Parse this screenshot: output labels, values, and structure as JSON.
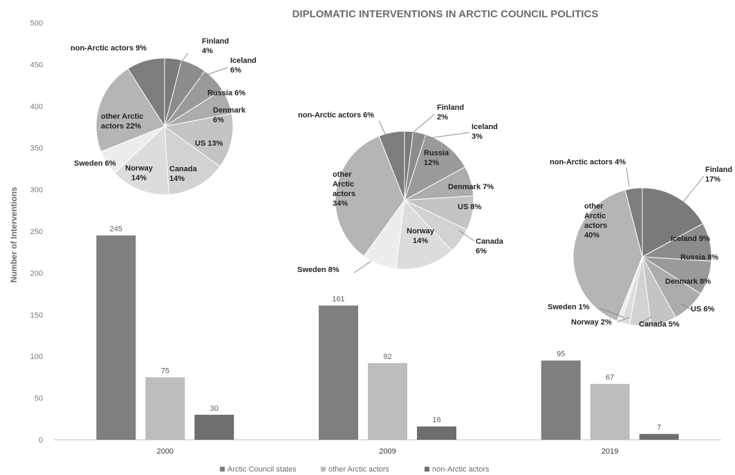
{
  "colors": {
    "arctic_council_states": "#7f7f7f",
    "other_arctic_actors": "#bdbdbd",
    "non_arctic_actors": "#6e6e6e",
    "axis": "#bfbfbf",
    "leader": "#8a8a8a"
  },
  "chart_data": [
    {
      "type": "bar",
      "title": "DIPLOMATIC INTERVENTIONS IN ARCTIC COUNCIL POLITICS",
      "ylabel": "Number of Interventions",
      "xlabel": "",
      "ylim": [
        0,
        500
      ],
      "yticks": [
        0,
        50,
        100,
        150,
        200,
        250,
        300,
        350,
        400,
        450,
        500
      ],
      "categories": [
        "2000",
        "2009",
        "2019"
      ],
      "series": [
        {
          "name": "Arctic Council states",
          "values": [
            245,
            161,
            95
          ],
          "color": "#7f7f7f"
        },
        {
          "name": "other Arctic actors",
          "values": [
            75,
            92,
            67
          ],
          "color": "#bdbdbd"
        },
        {
          "name": "non-Arctic actors",
          "values": [
            30,
            16,
            7
          ],
          "color": "#6e6e6e"
        }
      ],
      "legend": "bottom",
      "grid": false
    },
    {
      "type": "pie",
      "year": "2000",
      "slices": [
        {
          "name": "Finland",
          "value": 4,
          "label": "Finland\n4%",
          "color": "#7a7a7a"
        },
        {
          "name": "Iceland",
          "value": 6,
          "label": "Iceland\n6%",
          "color": "#8c8c8c"
        },
        {
          "name": "Russia",
          "value": 6,
          "label": "Russia 6%",
          "color": "#9a9a9a"
        },
        {
          "name": "Denmark",
          "value": 6,
          "label": "Denmark\n6%",
          "color": "#acacac"
        },
        {
          "name": "US",
          "value": 13,
          "label": "US 13%",
          "color": "#c4c4c4"
        },
        {
          "name": "Canada",
          "value": 14,
          "label": "Canada\n14%",
          "color": "#d2d2d2"
        },
        {
          "name": "Norway",
          "value": 14,
          "label": "Norway\n14%",
          "color": "#dcdcdc"
        },
        {
          "name": "Sweden",
          "value": 6,
          "label": "Sweden 6%",
          "color": "#ededed"
        },
        {
          "name": "other Arctic actors",
          "value": 22,
          "label": "other Arctic\nactors 22%",
          "color": "#b5b5b5"
        },
        {
          "name": "non-Arctic actors",
          "value": 9,
          "label": "non-Arctic actors 9%",
          "color": "#7d7d7d"
        }
      ]
    },
    {
      "type": "pie",
      "year": "2009",
      "slices": [
        {
          "name": "Finland",
          "value": 2,
          "label": "Finland\n2%",
          "color": "#7a7a7a"
        },
        {
          "name": "Iceland",
          "value": 3,
          "label": "Iceland\n3%",
          "color": "#8c8c8c"
        },
        {
          "name": "Russia",
          "value": 12,
          "label": "Russia\n12%",
          "color": "#9a9a9a"
        },
        {
          "name": "Denmark",
          "value": 7,
          "label": "Denmark 7%",
          "color": "#acacac"
        },
        {
          "name": "US",
          "value": 8,
          "label": "US 8%",
          "color": "#c4c4c4"
        },
        {
          "name": "Canada",
          "value": 6,
          "label": "Canada\n6%",
          "color": "#d2d2d2"
        },
        {
          "name": "Norway",
          "value": 14,
          "label": "Norway\n14%",
          "color": "#dcdcdc"
        },
        {
          "name": "Sweden",
          "value": 8,
          "label": "Sweden 8%",
          "color": "#ededed"
        },
        {
          "name": "other Arctic actors",
          "value": 34,
          "label": "other\nArctic\nactors\n34%",
          "color": "#b5b5b5"
        },
        {
          "name": "non-Arctic actors",
          "value": 6,
          "label": "non-Arctic actors 6%",
          "color": "#7d7d7d"
        }
      ]
    },
    {
      "type": "pie",
      "year": "2019",
      "slices": [
        {
          "name": "Finland",
          "value": 17,
          "label": "Finland\n17%",
          "color": "#7a7a7a"
        },
        {
          "name": "Iceland",
          "value": 9,
          "label": "Iceland 9%",
          "color": "#8c8c8c"
        },
        {
          "name": "Russia",
          "value": 8,
          "label": "Russia 8%",
          "color": "#9a9a9a"
        },
        {
          "name": "Denmark",
          "value": 8,
          "label": "Denmark 8%",
          "color": "#acacac"
        },
        {
          "name": "US",
          "value": 6,
          "label": "US 6%",
          "color": "#c4c4c4"
        },
        {
          "name": "Canada",
          "value": 5,
          "label": "Canada 5%",
          "color": "#d2d2d2"
        },
        {
          "name": "Norway",
          "value": 2,
          "label": "Norway 2%",
          "color": "#dcdcdc"
        },
        {
          "name": "Sweden",
          "value": 1,
          "label": "Sweden 1%",
          "color": "#ededed"
        },
        {
          "name": "other Arctic actors",
          "value": 40,
          "label": "other\nArctic\nactors\n40%",
          "color": "#b5b5b5"
        },
        {
          "name": "non-Arctic actors",
          "value": 4,
          "label": "non-Arctic actors 4%",
          "color": "#7d7d7d"
        }
      ]
    }
  ]
}
